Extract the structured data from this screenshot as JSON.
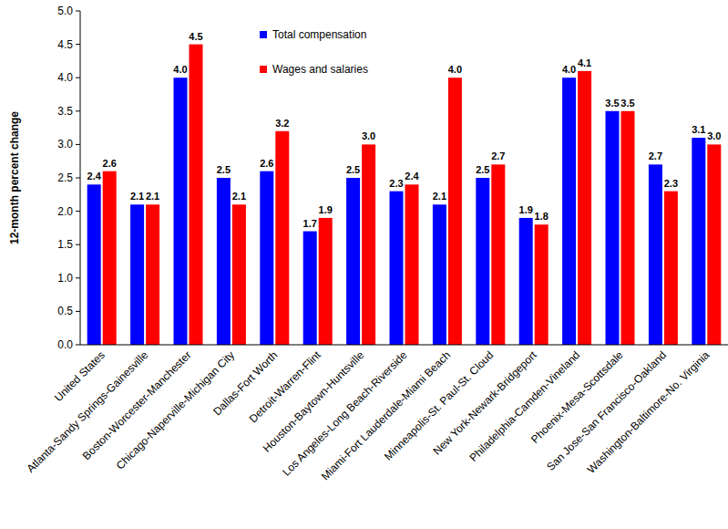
{
  "chart_data": {
    "type": "bar",
    "y_label": "12-month percent change",
    "categories": [
      "United States",
      "Atlanta-Sandy Springs-Gainesville",
      "Boston-Worcester-Manchester",
      "Chicago-Naperville-Michigan City",
      "Dallas-Fort Worth",
      "Detroit-Warren-Flint",
      "Houston-Baytown-Huntsville",
      "Los Angeles-Long Beach-Riverside",
      "Miami-Fort Lauderdale-Miami Beach",
      "Minneapolis-St. Paul-St. Cloud",
      "New York-Newark-Bridgeport",
      "Philadelphia-Camden-Vineland",
      "Phoenix-Mesa-Scottsdale",
      "San Jose-San Francisco-Oakland",
      "Washington-Baltimore-No. Virginia"
    ],
    "series": [
      {
        "name": "Total compensation",
        "color": "#0000ff",
        "values": [
          2.4,
          2.1,
          4.0,
          2.5,
          2.6,
          1.7,
          2.5,
          2.3,
          2.1,
          2.5,
          1.9,
          4.0,
          3.5,
          2.7,
          3.1
        ],
        "value_labels": [
          "2.4",
          "2.1",
          "4.0",
          "2.5",
          "2.6",
          "1.7",
          "2.5",
          "2.3",
          "2.1",
          "2.5",
          "1.9",
          "4.0",
          "3.5",
          "2.7",
          "3.1"
        ]
      },
      {
        "name": "Wages and salaries",
        "color": "#ff0000",
        "values": [
          2.6,
          2.1,
          4.5,
          2.1,
          3.2,
          1.9,
          3.0,
          2.4,
          4.0,
          2.7,
          1.8,
          4.1,
          3.5,
          2.3,
          3.0
        ],
        "value_labels": [
          "2.6",
          "2.1",
          "4.5",
          "2.1",
          "3.2",
          "1.9",
          "3.0",
          "2.4",
          "4.0",
          "2.7",
          "1.8",
          "4.1",
          "3.5",
          "2.3",
          "3.0"
        ]
      }
    ],
    "ylim": [
      0,
      5
    ],
    "yticks": [
      {
        "value": 0,
        "label": "0.0"
      },
      0.5,
      {
        "value": 1,
        "label": "1.0"
      },
      1.5,
      {
        "value": 2,
        "label": "2.0"
      },
      2.5,
      {
        "value": 3,
        "label": "3.0"
      },
      3.5,
      {
        "value": 4,
        "label": "4.0"
      },
      4.5,
      {
        "value": 5,
        "label": "5.0"
      }
    ],
    "grid": false,
    "legend": "top",
    "data_labels": true
  }
}
